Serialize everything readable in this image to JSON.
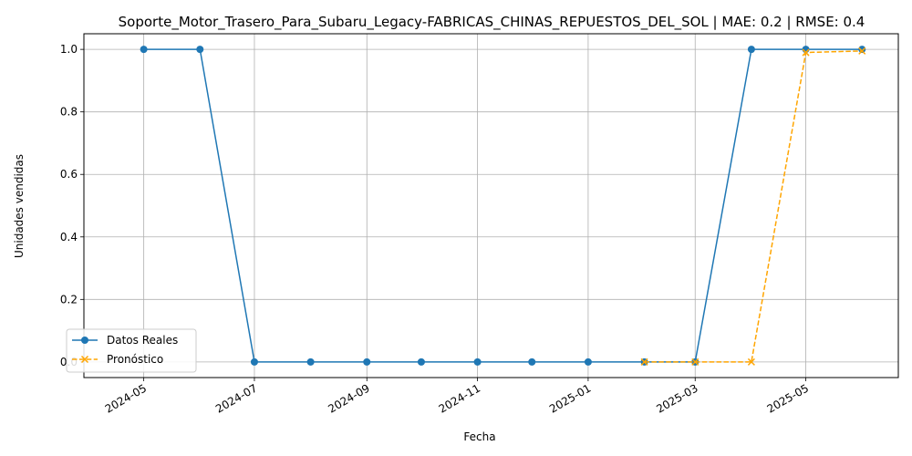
{
  "chart_data": {
    "type": "line",
    "title": "Soporte_Motor_Trasero_Para_Subaru_Legacy-FABRICAS_CHINAS_REPUESTOS_DEL_SOL | MAE: 0.2 | RMSE: 0.4",
    "xlabel": "Fecha",
    "ylabel": "Unidades vendidas",
    "xlim": [
      "2024-03-29",
      "2025-06-21"
    ],
    "ylim": [
      -0.05,
      1.05
    ],
    "x_ticks": [
      "2024-05",
      "2024-07",
      "2024-09",
      "2024-11",
      "2025-01",
      "2025-03",
      "2025-05"
    ],
    "y_ticks": [
      "0.0",
      "0.2",
      "0.4",
      "0.6",
      "0.8",
      "1.0"
    ],
    "grid": true,
    "legend_position": "lower-left",
    "series": [
      {
        "name": "Datos Reales",
        "color": "#1f77b4",
        "style": "solid",
        "marker": "circle",
        "x": [
          "2024-05-01",
          "2024-06-01",
          "2024-07-01",
          "2024-08-01",
          "2024-09-01",
          "2024-10-01",
          "2024-11-01",
          "2024-12-01",
          "2025-01-01",
          "2025-02-01",
          "2025-03-01",
          "2025-04-01",
          "2025-05-01",
          "2025-06-01"
        ],
        "values": [
          1,
          1,
          0,
          0,
          0,
          0,
          0,
          0,
          0,
          0,
          0,
          1,
          1,
          1
        ]
      },
      {
        "name": "Pronóstico",
        "color": "#ffa500",
        "style": "dashed",
        "marker": "x",
        "x": [
          "2025-02-01",
          "2025-03-01",
          "2025-04-01",
          "2025-05-01",
          "2025-06-01"
        ],
        "values": [
          0,
          0,
          0,
          0.99,
          0.995
        ]
      }
    ]
  }
}
